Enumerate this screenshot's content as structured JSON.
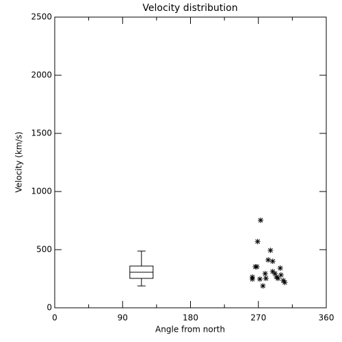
{
  "chart_data": {
    "type": "box_scatter",
    "title": "Velocity distribution",
    "x_label": "Angle from north",
    "y_label": "Velocity (km/s)",
    "xlim": [
      0,
      360
    ],
    "xticks": [
      0,
      90,
      180,
      270,
      360
    ],
    "xminorticks": [
      45,
      135,
      225,
      315
    ],
    "ylim": [
      0,
      2500
    ],
    "yticks": [
      0,
      500,
      1000,
      1500,
      2000,
      2500
    ],
    "color": "#000000",
    "box": {
      "position": 115,
      "whisker_low": 188,
      "q1": 253,
      "median": 306,
      "q3": 359,
      "whisker_high": 488
    },
    "points": {
      "x": [
        262,
        262,
        266,
        268,
        269,
        273,
        272,
        276,
        279,
        280,
        283,
        286,
        289,
        289,
        292,
        294,
        296,
        299,
        300,
        303,
        305
      ],
      "y": [
        265,
        247,
        353,
        353,
        570,
        753,
        247,
        188,
        294,
        253,
        412,
        494,
        400,
        312,
        294,
        265,
        253,
        341,
        282,
        235,
        218
      ]
    }
  }
}
